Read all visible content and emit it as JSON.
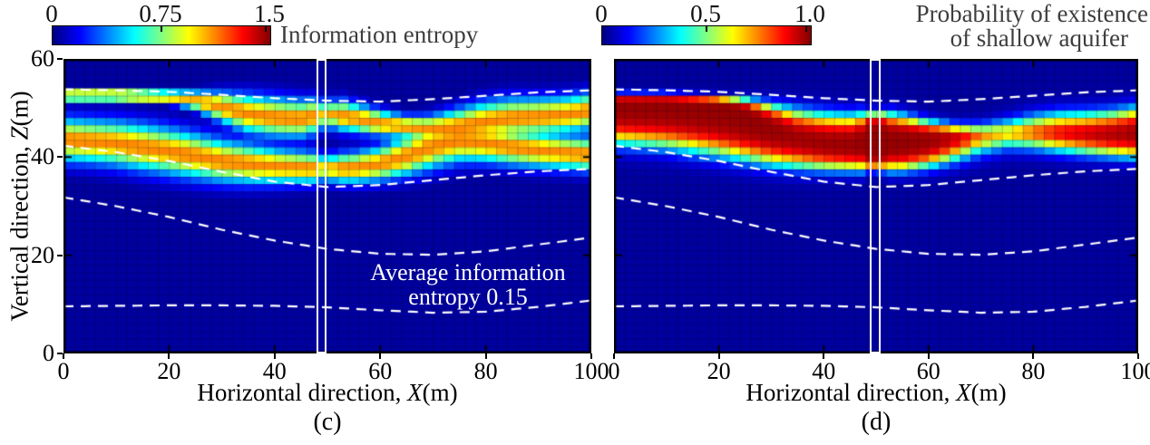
{
  "chart_data": [
    {
      "type": "heatmap",
      "panel_label": "(c)",
      "quantity": "Information entropy",
      "xlabel": "Horizontal direction, X(m)",
      "ylabel": "Vertical direction, Z(m)",
      "xlim": [
        0,
        100
      ],
      "ylim": [
        0,
        60
      ],
      "xticks": [
        0,
        20,
        40,
        60,
        80,
        100
      ],
      "yticks": [
        0,
        20,
        40,
        60
      ],
      "colorbar": {
        "min": 0,
        "max": 1.5,
        "ticks": [
          "0",
          "0.75",
          "1.5"
        ],
        "colormap": "jet",
        "label": "Information entropy"
      },
      "annotation_lines": [
        "Average information",
        "entropy 0.15"
      ],
      "average_information_entropy": 0.15,
      "well_highlight_x_range_m": [
        48.0,
        49.8
      ],
      "grid_cell_size_m": {
        "dx": 2,
        "dz": 1.5
      },
      "value_model": "binary information entropy (bits) of aquifer probability field",
      "legend_position": "top"
    },
    {
      "type": "heatmap",
      "panel_label": "(d)",
      "quantity": "Probability of existence of shallow aquifer",
      "xlabel": "Horizontal direction, X(m)",
      "ylabel": "Vertical direction, Z(m)",
      "xlim": [
        0,
        100
      ],
      "ylim": [
        0,
        60
      ],
      "xticks": [
        0,
        20,
        40,
        60,
        80,
        100
      ],
      "yticks": [
        0,
        20,
        40,
        60
      ],
      "colorbar": {
        "min": 0,
        "max": 1.0,
        "ticks": [
          "0",
          "0.5",
          "1.0"
        ],
        "colormap": "jet",
        "label_lines": [
          "Probability of existence",
          "of shallow aquifer"
        ]
      },
      "well_highlight_x_range_m": [
        48.9,
        50.9
      ],
      "grid_cell_size_m": {
        "dx": 2,
        "dz": 1.5
      },
      "value_model": "probability of shallow aquifer facies",
      "legend_position": "top"
    }
  ],
  "axes_text": {
    "x_prefix": "Horizontal direction, ",
    "x_var": "X",
    "x_suffix": "(m)",
    "y_prefix": "Vertical direction, ",
    "y_var": "Z",
    "y_suffix": "(m)"
  },
  "aquifer_field_model": {
    "x_m": [
      0,
      5,
      10,
      15,
      20,
      25,
      30,
      35,
      40,
      45,
      50,
      55,
      60,
      65,
      70,
      75,
      80,
      85,
      90,
      95,
      100
    ],
    "top_surface_z_m": [
      52.6,
      52.6,
      52.6,
      52.4,
      52.2,
      51.6,
      50.2,
      48.8,
      48.1,
      47.8,
      48.9,
      48.0,
      46.9,
      46.1,
      45.8,
      46.3,
      47.3,
      48.0,
      48.2,
      48.6,
      49.4
    ],
    "bottom_surface_z_m": [
      43.5,
      43.2,
      42.8,
      42.0,
      41.2,
      40.2,
      39.2,
      38.6,
      38.1,
      37.9,
      37.7,
      37.8,
      38.6,
      40.2,
      42.2,
      43.2,
      42.8,
      42.0,
      41.4,
      40.9,
      40.5
    ],
    "top_transition_halfwidth_m": [
      0.45,
      0.45,
      0.45,
      0.45,
      0.5,
      0.9,
      1.7,
      2.3,
      2.4,
      2.3,
      1.8,
      1.7,
      1.4,
      1.2,
      1.5,
      2.1,
      2.4,
      2.4,
      2.3,
      2.2,
      2.2
    ],
    "bottom_transition_halfwidth_m": [
      2.7,
      2.7,
      2.8,
      2.9,
      2.9,
      2.8,
      2.6,
      2.4,
      2.1,
      1.9,
      1.7,
      1.8,
      2.0,
      2.4,
      2.7,
      2.5,
      2.3,
      2.2,
      2.1,
      2.0,
      2.0
    ],
    "conditioning_well_x_m": 49.8
  },
  "dashed_layer_boundaries": [
    {
      "x_m": [
        0,
        10,
        20,
        30,
        40,
        50,
        60,
        70,
        80,
        90,
        100
      ],
      "z_m": [
        53.8,
        53.6,
        53.3,
        52.7,
        52.0,
        51.5,
        51.3,
        51.8,
        52.5,
        53.2,
        53.6
      ]
    },
    {
      "x_m": [
        0,
        10,
        20,
        30,
        40,
        50,
        60,
        70,
        80,
        90,
        100
      ],
      "z_m": [
        42.3,
        41.0,
        39.2,
        37.0,
        35.0,
        33.9,
        34.3,
        35.3,
        36.3,
        37.1,
        37.6
      ]
    },
    {
      "x_m": [
        0,
        10,
        20,
        30,
        40,
        50,
        60,
        70,
        80,
        90,
        100
      ],
      "z_m": [
        31.8,
        30.0,
        27.8,
        25.2,
        23.0,
        21.3,
        20.3,
        20.1,
        20.8,
        22.2,
        23.6
      ]
    },
    {
      "x_m": [
        0,
        10,
        20,
        30,
        40,
        50,
        60,
        70,
        80,
        90,
        100
      ],
      "z_m": [
        9.6,
        9.7,
        9.8,
        9.8,
        9.7,
        9.4,
        8.8,
        8.3,
        8.5,
        9.5,
        10.8
      ]
    }
  ],
  "colors": {
    "background": "#ffffff",
    "frame": "#000000",
    "dashed_lines": "#ffffff",
    "annotation_text": "#ffffff",
    "colorbar_label": "#3d3d3d"
  }
}
